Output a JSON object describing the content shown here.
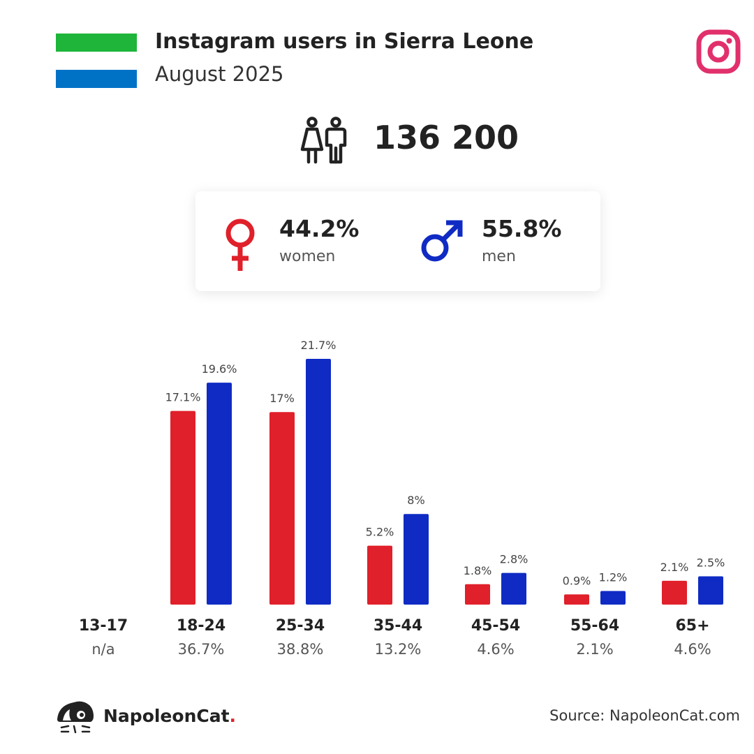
{
  "header": {
    "title": "Instagram users in Sierra Leone",
    "subtitle": "August 2025",
    "flag_colors": [
      "#1eb53a",
      "#ffffff",
      "#0072c6"
    ],
    "platform_icon": "instagram-icon",
    "platform_color": "#e1306c"
  },
  "total": {
    "icon": "people-icon",
    "value": "136 200"
  },
  "gender": {
    "women": {
      "icon": "female-symbol-icon",
      "pct": "44.2%",
      "label": "women",
      "color": "#e0202a"
    },
    "men": {
      "icon": "male-symbol-icon",
      "pct": "55.8%",
      "label": "men",
      "color": "#0f2bc4"
    }
  },
  "chart_data": {
    "type": "bar",
    "categories": [
      "13-17",
      "18-24",
      "25-34",
      "35-44",
      "45-54",
      "55-64",
      "65+"
    ],
    "category_shares": [
      "n/a",
      "36.7%",
      "38.8%",
      "13.2%",
      "4.6%",
      "2.1%",
      "4.6%"
    ],
    "series": [
      {
        "name": "women",
        "color": "#e0202a",
        "values": [
          null,
          17.1,
          17,
          5.2,
          1.8,
          0.9,
          2.1
        ],
        "labels": [
          "",
          "17.1%",
          "17%",
          "5.2%",
          "1.8%",
          "0.9%",
          "2.1%"
        ]
      },
      {
        "name": "men",
        "color": "#0f2bc4",
        "values": [
          null,
          19.6,
          21.7,
          8,
          2.8,
          1.2,
          2.5
        ],
        "labels": [
          "",
          "19.6%",
          "21.7%",
          "8%",
          "2.8%",
          "1.2%",
          "2.5%"
        ]
      }
    ],
    "ylim": [
      0,
      21.7
    ],
    "grid": false,
    "legend": "none"
  },
  "footer": {
    "brand_name": "NapoleonCat",
    "brand_dot": ".",
    "logo_icon": "napoleoncat-logo-icon",
    "source": "Source: NapoleonCat.com"
  }
}
